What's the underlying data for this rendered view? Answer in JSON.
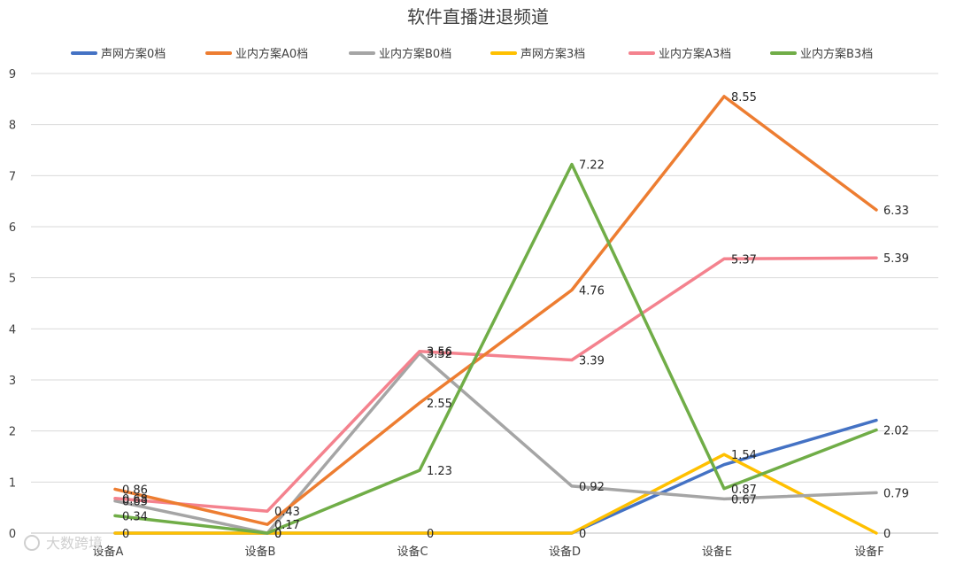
{
  "chart_data": {
    "type": "line",
    "title": "软件直播进退频道",
    "xlabel": "",
    "ylabel": "",
    "categories": [
      "设备A",
      "设备B",
      "设备C",
      "设备D",
      "设备E",
      "设备F"
    ],
    "ylim": [
      0,
      9
    ],
    "yticks": [
      "0",
      "1",
      "2",
      "3",
      "4",
      "5",
      "6",
      "7",
      "8",
      "9"
    ],
    "grid": true,
    "legend_position": "top",
    "series": [
      {
        "name": "声网方案0档",
        "color": "#4472c4",
        "values": [
          0,
          0,
          0,
          0,
          1.34,
          2.21
        ],
        "labels": [
          "",
          "",
          "",
          "",
          "",
          ""
        ]
      },
      {
        "name": "业内方案A0档",
        "color": "#ed7d31",
        "values": [
          0.86,
          0.17,
          2.55,
          4.76,
          8.55,
          6.33
        ],
        "labels": [
          "0.86",
          "0.17",
          "2.55",
          "4.76",
          "8.55",
          "6.33"
        ]
      },
      {
        "name": "业内方案B0档",
        "color": "#a5a5a5",
        "values": [
          0.63,
          0,
          3.52,
          0.92,
          0.67,
          0.79
        ],
        "labels": [
          "0.63",
          "0",
          "3.52",
          "0.92",
          "0.67",
          "0.79"
        ]
      },
      {
        "name": "声网方案3档",
        "color": "#ffc000",
        "values": [
          0,
          0,
          0,
          0,
          1.54,
          0
        ],
        "labels": [
          "0",
          "0",
          "0",
          "0",
          "1.54",
          "0"
        ]
      },
      {
        "name": "业内方案A3档",
        "color": "#f4828e",
        "values": [
          0.68,
          0.43,
          3.56,
          3.39,
          5.37,
          5.39
        ],
        "labels": [
          "0.68",
          "0.43",
          "3.56",
          "3.39",
          "5.37",
          "5.39"
        ]
      },
      {
        "name": "业内方案B3档",
        "color": "#70ad47",
        "values": [
          0.34,
          0,
          1.23,
          7.22,
          0.87,
          2.02
        ],
        "labels": [
          "0.34",
          "0",
          "1.23",
          "7.22",
          "0.87",
          "2.02"
        ]
      }
    ]
  },
  "watermark": "大数跨境"
}
